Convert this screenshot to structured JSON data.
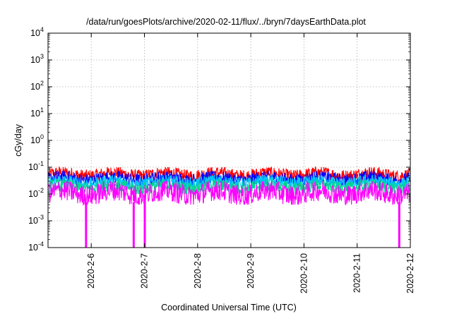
{
  "chart_data": {
    "type": "line",
    "title": "/data/run/goesPlots/archive/2020-02-11/flux/../bryn/7daysEarthData.plot",
    "xlabel": "Coordinated Universal Time (UTC)",
    "ylabel": "cGy/day",
    "yscale": "log",
    "ylim": [
      0.0001,
      10000
    ],
    "xlim": [
      "2020-02-05 04:30",
      "2020-02-12 00:00"
    ],
    "grid": true,
    "legend": "none",
    "y_ticks": [
      {
        "base": "10",
        "exp": "-4",
        "value": 0.0001
      },
      {
        "base": "10",
        "exp": "-3",
        "value": 0.001
      },
      {
        "base": "10",
        "exp": "-2",
        "value": 0.01
      },
      {
        "base": "10",
        "exp": "-1",
        "value": 0.1
      },
      {
        "base": "10",
        "exp": "0",
        "value": 1
      },
      {
        "base": "10",
        "exp": "1",
        "value": 10
      },
      {
        "base": "10",
        "exp": "2",
        "value": 100
      },
      {
        "base": "10",
        "exp": "3",
        "value": 1000
      },
      {
        "base": "10",
        "exp": "4",
        "value": 10000
      }
    ],
    "x_ticks": [
      {
        "label": "2020-2-6",
        "date": "2020-02-06"
      },
      {
        "label": "2020-2-7",
        "date": "2020-02-07"
      },
      {
        "label": "2020-2-8",
        "date": "2020-02-08"
      },
      {
        "label": "2020-2-9",
        "date": "2020-02-09"
      },
      {
        "label": "2020-2-10",
        "date": "2020-02-10"
      },
      {
        "label": "2020-2-11",
        "date": "2020-02-11"
      },
      {
        "label": "2020-2-12",
        "date": "2020-02-12"
      }
    ],
    "series": [
      {
        "color": "#ff0000",
        "values_range": [
          0.03,
          0.1
        ]
      },
      {
        "color": "#0000ff",
        "values_range": [
          0.02,
          0.07
        ]
      },
      {
        "color": "#00c8ff",
        "values_range": [
          0.015,
          0.05
        ]
      },
      {
        "color": "#00d48a",
        "values_range": [
          0.01,
          0.035
        ]
      },
      {
        "color": "#ff00ff",
        "values_range": [
          0.004,
          0.03
        ]
      }
    ],
    "dropouts": [
      {
        "date": "2020-02-05 21:40",
        "value": 0.0001
      },
      {
        "date": "2020-02-06 19:10",
        "value": 0.0001
      },
      {
        "date": "2020-02-07 00:10",
        "value": 0.0001
      },
      {
        "date": "2020-02-11 19:00",
        "value": 0.0001
      }
    ]
  }
}
